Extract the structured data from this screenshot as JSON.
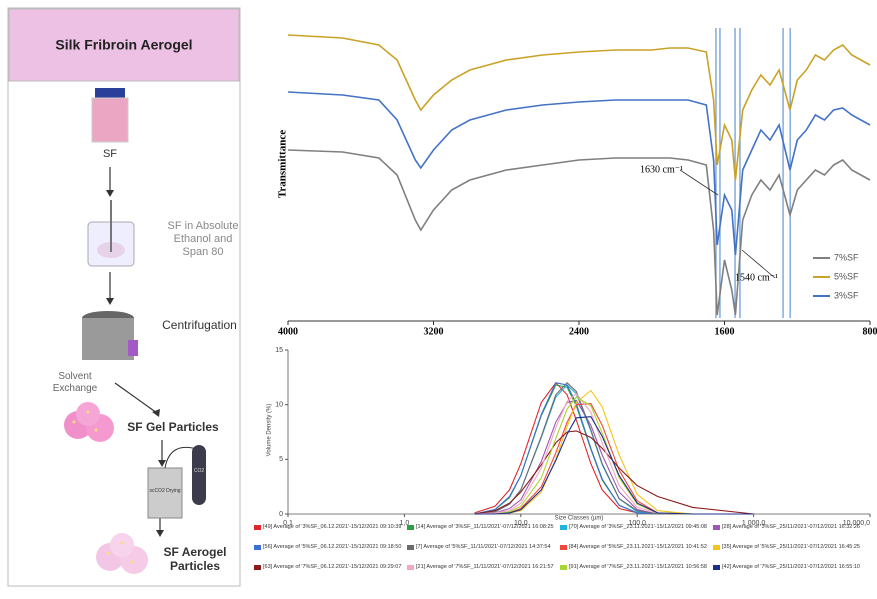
{
  "flowchart": {
    "title": "Silk Fribroin Aerogel",
    "steps": [
      "SF",
      "SF in Absolute Ethanol and Span 80",
      "Centrifugation",
      "Solvent Exchange",
      "SF Gel Particles",
      "scCO2 Drying",
      "CO2",
      "SF Aerogel Particles"
    ]
  },
  "chart_data": [
    {
      "type": "line",
      "y_label": "Transmittance",
      "xlim": [
        4000,
        800
      ],
      "xticks": [
        4000,
        3200,
        2400,
        1600,
        800
      ],
      "ylim": [
        0,
        308
      ],
      "x": [
        4000,
        3700,
        3500,
        3400,
        3300,
        3270,
        3200,
        3100,
        3000,
        2800,
        2600,
        2400,
        2200,
        2000,
        1900,
        1800,
        1700,
        1660,
        1640,
        1600,
        1560,
        1540,
        1500,
        1450,
        1400,
        1350,
        1300,
        1240,
        1200,
        1150,
        1100,
        1050,
        1000,
        950,
        900,
        850,
        800
      ],
      "series": [
        {
          "name": "7%SF",
          "color": "#7f7f7f",
          "values": [
            168,
            166,
            160,
            143,
            98,
            88,
            108,
            128,
            138,
            148,
            153,
            158,
            160,
            160,
            160,
            158,
            153,
            88,
            3,
            58,
            28,
            3,
            98,
            123,
            138,
            128,
            143,
            103,
            128,
            138,
            148,
            143,
            153,
            158,
            148,
            143,
            138
          ]
        },
        {
          "name": "5%SF",
          "color": "#c9a227",
          "values": [
            283,
            280,
            273,
            258,
            218,
            208,
            223,
            238,
            248,
            258,
            263,
            266,
            268,
            268,
            270,
            270,
            266,
            218,
            153,
            193,
            178,
            138,
            208,
            228,
            243,
            233,
            248,
            208,
            238,
            248,
            263,
            258,
            268,
            273,
            263,
            258,
            253
          ]
        },
        {
          "name": "3%SF",
          "color": "#4472c4",
          "values": [
            226,
            223,
            218,
            198,
            158,
            150,
            168,
            188,
            198,
            208,
            213,
            216,
            218,
            218,
            218,
            218,
            213,
            158,
            73,
            123,
            108,
            63,
            148,
            168,
            188,
            178,
            193,
            148,
            178,
            188,
            203,
            198,
            208,
            210,
            203,
            198,
            193
          ]
        }
      ],
      "vlines": [
        1647,
        1625,
        1542,
        1515,
        1278,
        1239
      ],
      "vline_color": "#6f9fd8",
      "annotations": [
        "1630 cm⁻¹",
        "1540 cm⁻¹"
      ],
      "legend": "lower right"
    },
    {
      "type": "line",
      "x_label": "Size Classes (µm)",
      "y_label": "Volume Density (%)",
      "log_x": true,
      "xlim": [
        0.1,
        10000
      ],
      "xticks": [
        {
          "value": 0.1,
          "label": "0,1"
        },
        {
          "value": 1,
          "label": "1,0"
        },
        {
          "value": 10,
          "label": "10,0"
        },
        {
          "value": 100,
          "label": "100,0"
        },
        {
          "value": 1000,
          "label": "1 000,0"
        },
        {
          "value": 10000,
          "label": "10 000,0"
        }
      ],
      "ylim": [
        0,
        15
      ],
      "yticks": [
        0,
        5,
        10,
        15
      ],
      "x": [
        4,
        6,
        8,
        10,
        15,
        20,
        25,
        30,
        40,
        50,
        70,
        100,
        150,
        300,
        1000
      ],
      "series": [
        {
          "name": "[49] Average of '3%SF_06.12.2021'-15/12/2021 09:10:39",
          "color": "#e0262b",
          "values": [
            0.1,
            0.7,
            2.2,
            4.6,
            10.2,
            12,
            10.9,
            8.6,
            4.6,
            2.2,
            0.5,
            0.1,
            0,
            0,
            0
          ]
        },
        {
          "name": "[14] Average of '3%SF_11/11/2021'-07/12/2021 16:08:25",
          "color": "#2ea043",
          "values": [
            0,
            0.4,
            1.5,
            3.5,
            9,
            11.8,
            11.6,
            9.9,
            5.9,
            3.1,
            0.8,
            0.1,
            0,
            0,
            0
          ]
        },
        {
          "name": "[70] Average of '3%SF_23.11.2021'-15/12/2021 09:45:08",
          "color": "#1fb3e0",
          "values": [
            0,
            0.2,
            0.9,
            2.2,
            7,
            10.7,
            11.8,
            11,
            7.6,
            4.5,
            1.4,
            0.2,
            0,
            0,
            0
          ]
        },
        {
          "name": "[28] Average of '3%SF_25/11/2021'-07/12/2021 16:32:26",
          "color": "#9b59b6",
          "values": [
            0,
            0.1,
            0.5,
            1.3,
            4.8,
            8.4,
            10.2,
            10.4,
            8.1,
            5.4,
            2,
            0.4,
            0,
            0,
            0
          ]
        },
        {
          "name": "[56] Average of '5%SF_06.12.2021'-15/12/2021 09:18:50",
          "color": "#3b6fd4",
          "values": [
            0,
            0.4,
            1.6,
            3.5,
            9.1,
            12,
            11.8,
            10.1,
            6,
            3.2,
            0.8,
            0.1,
            0,
            0,
            0
          ]
        },
        {
          "name": "[7] Average of '5%SF_11/11/2021'-07/12/2021 14:37:54",
          "color": "#6b6b6b",
          "values": [
            0,
            0.2,
            0.9,
            2.2,
            7.1,
            10.9,
            12,
            11.2,
            7.7,
            4.6,
            1.4,
            0.3,
            0,
            0,
            0
          ]
        },
        {
          "name": "[84] Average of '5%SF_23.11.2021'-15/12/2021 10:41:52",
          "color": "#f0473d",
          "values": [
            0,
            0,
            0.1,
            0.5,
            2.5,
            5.6,
            8.4,
            10,
            10.1,
            8.1,
            4,
            1.2,
            0.1,
            0,
            0
          ]
        },
        {
          "name": "[35] Average of '5%SF_25/11/2021'-07/12/2021 16:45:25",
          "color": "#f5c518",
          "values": [
            0,
            0,
            0.1,
            0.3,
            2,
            5,
            8,
            10.2,
            11.3,
            9.8,
            5.4,
            1.8,
            0.3,
            0,
            0
          ]
        },
        {
          "name": "[63] Average of '7%SF_06.12.2021'-15/12/2021 09:29:07",
          "color": "#8b1a1a",
          "values": [
            0,
            0.3,
            1,
            2,
            4.5,
            6.5,
            7.5,
            7.6,
            7,
            6,
            4.2,
            2.6,
            1.6,
            0.6,
            0
          ]
        },
        {
          "name": "[21] Average of '7%SF_11/11/2021'-07/12/2021 16:21:57",
          "color": "#f4a6c0",
          "values": [
            0,
            0.1,
            0.3,
            1,
            4.2,
            7.9,
            10.3,
            11,
            9.3,
            6.5,
            2.6,
            0.6,
            0.1,
            0,
            0
          ]
        },
        {
          "name": "[91] Average of '7%SF_23.11.2021'-15/12/2021 10:56:58",
          "color": "#a6d62f",
          "values": [
            0,
            0,
            0.2,
            0.7,
            3.3,
            6.9,
            9.6,
            10.7,
            9.9,
            7.4,
            3.3,
            0.9,
            0.1,
            0,
            0
          ]
        },
        {
          "name": "[42] Average of '7%SF_25/11/2021'-07/12/2021 16:55:10",
          "color": "#1c2f8c",
          "values": [
            0,
            0,
            0.1,
            0.4,
            2.2,
            4.9,
            7.3,
            8.8,
            8.9,
            7.1,
            3.5,
            1,
            0.1,
            0,
            0
          ]
        }
      ]
    }
  ]
}
